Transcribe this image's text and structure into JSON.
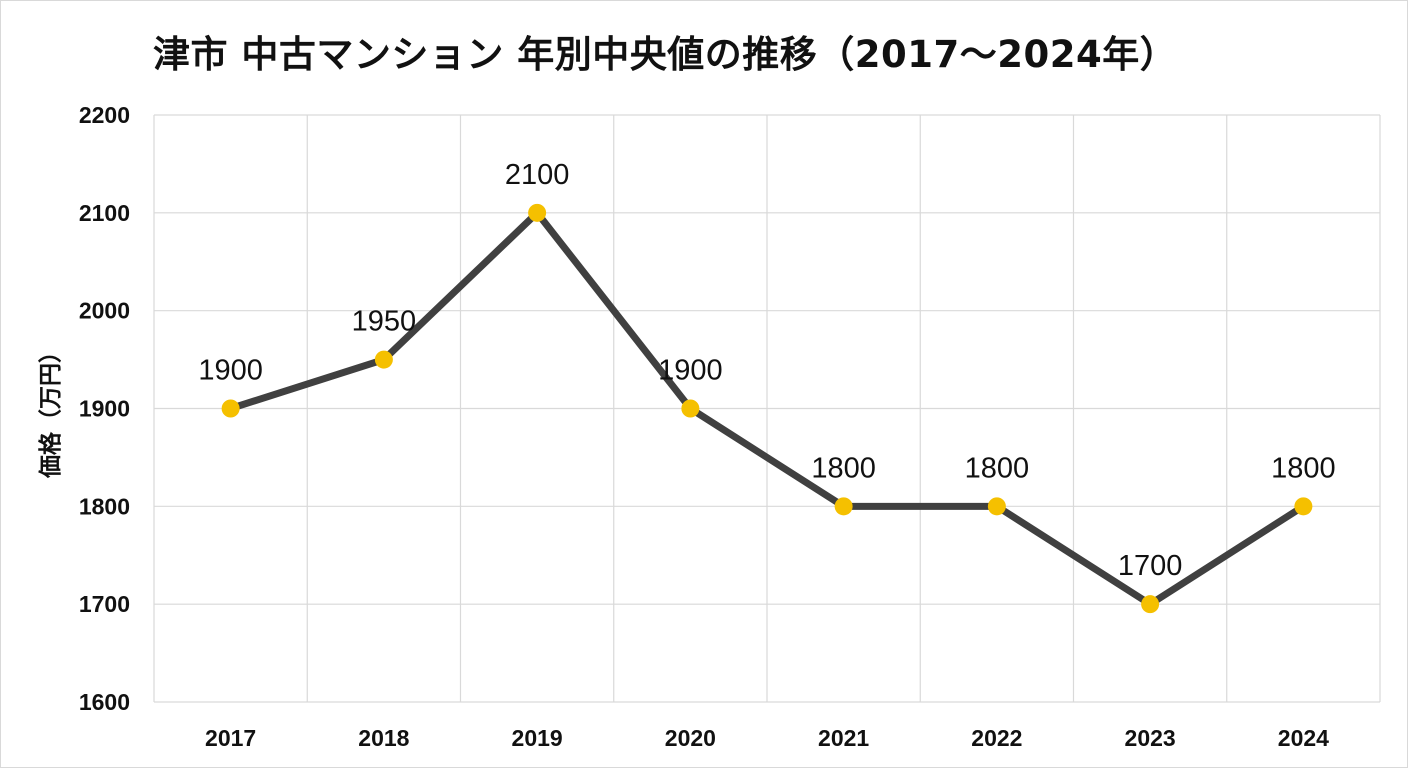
{
  "chart_data": {
    "type": "line",
    "title": "津市 中古マンション 年別中央値の推移（2017〜2024年）",
    "xlabel": "",
    "ylabel": "価格（万円）",
    "categories": [
      "2017",
      "2018",
      "2019",
      "2020",
      "2021",
      "2022",
      "2023",
      "2024"
    ],
    "series": [
      {
        "values": [
          1900,
          1950,
          2100,
          1900,
          1800,
          1800,
          1700,
          1800
        ]
      }
    ],
    "ylim": [
      1600,
      2200
    ],
    "yticks": [
      1600,
      1700,
      1800,
      1900,
      2000,
      2100,
      2200
    ],
    "data_labels": [
      "1900",
      "1950",
      "2100",
      "1900",
      "1800",
      "1800",
      "1700",
      "1800"
    ],
    "grid": true,
    "legend": "none",
    "colors": {
      "line": "#404040",
      "marker": "#f5c000",
      "grid": "#d9d9d9"
    }
  }
}
